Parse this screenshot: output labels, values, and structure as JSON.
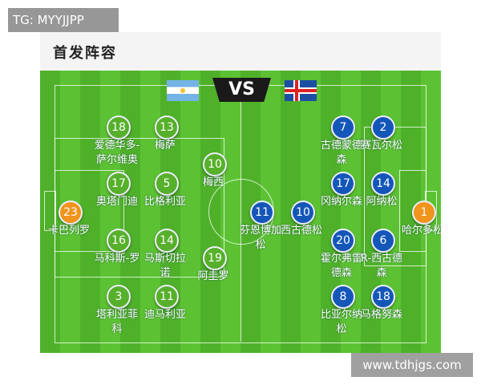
{
  "title": "首发阵容",
  "vs": "VS",
  "flags": {
    "left": "argentina-flag",
    "right": "iceland-flag"
  },
  "overlay_label": "TG: MYYJJPP",
  "watermark": "www.tdhjgs.com",
  "colors": {
    "argentina": "#57b02b",
    "iceland": "#1557b8",
    "goalkeeper": "#f0941c",
    "pitch": "#4fb12a"
  },
  "argentina": [
    {
      "num": "23",
      "name": "卡巴列罗",
      "gk": true
    },
    {
      "num": "18",
      "name": "爱德华多-萨尔维奥"
    },
    {
      "num": "17",
      "name": "奥塔门迪"
    },
    {
      "num": "16",
      "name": "马科斯-罗"
    },
    {
      "num": "3",
      "name": "塔利亚菲科"
    },
    {
      "num": "13",
      "name": "梅萨"
    },
    {
      "num": "5",
      "name": "比格利亚"
    },
    {
      "num": "14",
      "name": "马斯切拉诺"
    },
    {
      "num": "11",
      "name": "迪马利亚"
    },
    {
      "num": "10",
      "name": "梅西"
    },
    {
      "num": "19",
      "name": "阿圭罗"
    }
  ],
  "iceland": [
    {
      "num": "11",
      "name": "芬恩博加松"
    },
    {
      "num": "10",
      "name": "西古德松"
    },
    {
      "num": "7",
      "name": "古德蒙德森"
    },
    {
      "num": "17",
      "name": "冈纳尔森"
    },
    {
      "num": "20",
      "name": "霍尔弗雷德森"
    },
    {
      "num": "8",
      "name": "比亚尔纳松"
    },
    {
      "num": "2",
      "name": "赛瓦尔松"
    },
    {
      "num": "14",
      "name": "阿纳松"
    },
    {
      "num": "6",
      "name": "R-西古德森"
    },
    {
      "num": "18",
      "name": "马格努森"
    },
    {
      "num": "1",
      "name": "哈尔多松",
      "gk": true
    }
  ]
}
